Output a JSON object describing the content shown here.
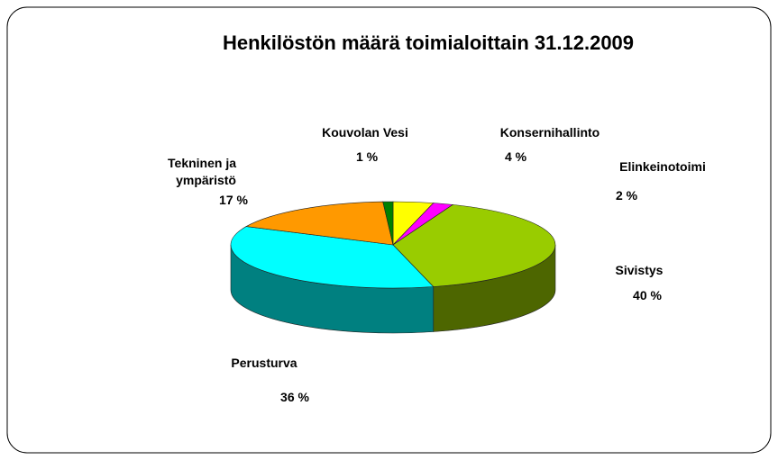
{
  "chart_data": {
    "type": "pie",
    "title": "Henkilöstön määrä toimialoittain 31.12.2009",
    "categories": [
      "Konsernihallinto",
      "Elinkeinotoimi",
      "Sivistys",
      "Perusturva",
      "Tekninen ja ympäristö",
      "Kouvolan Vesi"
    ],
    "values": [
      4,
      2,
      40,
      36,
      17,
      1
    ],
    "value_labels": [
      "4 %",
      "2 %",
      "40 %",
      "36 %",
      "17 %",
      "1 %"
    ],
    "colors": [
      "#ffff00",
      "#ff00ff",
      "#99cc00",
      "#00ffff",
      "#ff9900",
      "#008000"
    ]
  }
}
